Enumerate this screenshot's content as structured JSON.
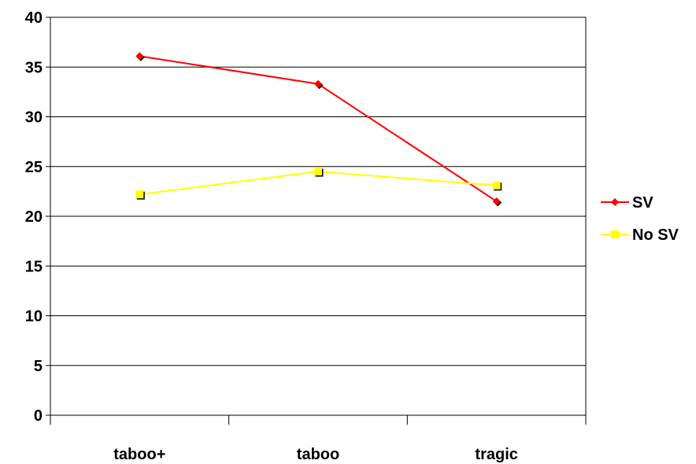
{
  "chart_data": {
    "type": "line",
    "title": "",
    "xlabel": "",
    "ylabel": "",
    "categories": [
      "taboo+",
      "taboo",
      "tragic"
    ],
    "ylim": [
      0,
      40
    ],
    "yticks": [
      0,
      5,
      10,
      15,
      20,
      25,
      30,
      35,
      40
    ],
    "grid": true,
    "legend_position": "right",
    "series": [
      {
        "name": "SV",
        "values": [
          36.1,
          33.3,
          21.5
        ],
        "color": "#ff0000",
        "marker": "diamond"
      },
      {
        "name": "No SV",
        "values": [
          22.2,
          24.5,
          23.1
        ],
        "color": "#ffff00",
        "marker": "square"
      }
    ]
  }
}
